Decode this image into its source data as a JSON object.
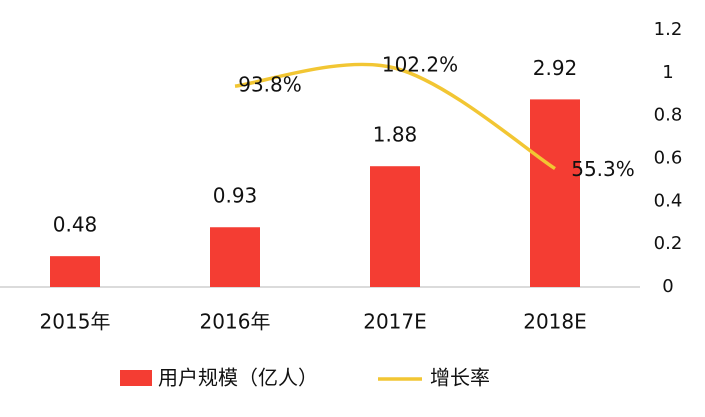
{
  "chart_data": {
    "type": "bar-line",
    "categories": [
      "2015年",
      "2016年",
      "2017E",
      "2018E"
    ],
    "series": [
      {
        "name": "用户规模（亿人）",
        "color": "#f43d33",
        "values": [
          0.48,
          0.93,
          1.88,
          2.92
        ]
      },
      {
        "name": "增长率",
        "color": "#f2c633",
        "axis": "y2",
        "values": [
          null,
          0.938,
          1.022,
          0.553
        ],
        "value_labels": [
          null,
          "93.8%",
          "102.2%",
          "55.3%"
        ]
      }
    ],
    "ylim": [
      0,
      4
    ],
    "y2lim": [
      0,
      1.2
    ],
    "y2ticks": [
      0,
      0.2,
      0.4,
      0.6,
      0.8,
      1,
      1.2
    ]
  }
}
